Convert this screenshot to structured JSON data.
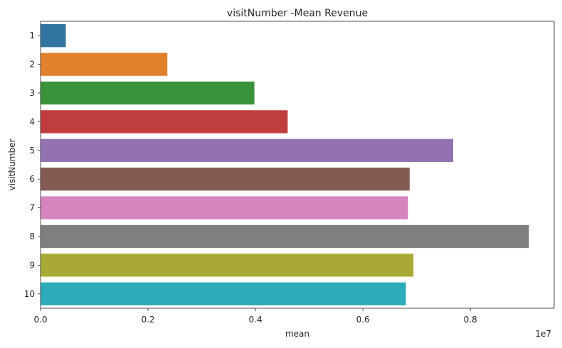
{
  "chart_data": {
    "type": "bar",
    "orientation": "horizontal",
    "title": "visitNumber -Mean Revenue",
    "xlabel": "mean",
    "ylabel": "visitNumber",
    "x_scale_label": "1e7",
    "categories": [
      "1",
      "2",
      "3",
      "4",
      "5",
      "6",
      "7",
      "8",
      "9",
      "10"
    ],
    "values": [
      0.047,
      0.236,
      0.398,
      0.46,
      0.768,
      0.687,
      0.684,
      0.909,
      0.694,
      0.68
    ],
    "value_multiplier": 10000000,
    "xlim": [
      0,
      0.956
    ],
    "xticks": [
      0,
      0.2,
      0.4,
      0.6,
      0.8
    ],
    "xtick_labels": [
      "0.0",
      "0.2",
      "0.4",
      "0.6",
      "0.8"
    ],
    "colors": [
      "#3274a1",
      "#e1812c",
      "#3a923a",
      "#c03d3e",
      "#9372b2",
      "#845b53",
      "#d684bd",
      "#7f7f7f",
      "#a9aa35",
      "#2eabb8"
    ],
    "grid": false,
    "legend": "none"
  }
}
